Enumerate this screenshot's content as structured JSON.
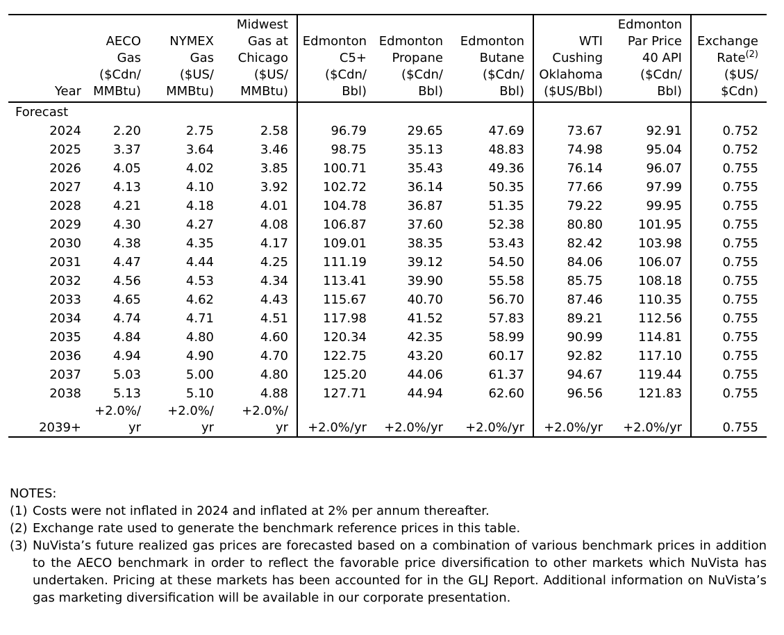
{
  "table": {
    "headers": [
      {
        "lines": [
          "Year"
        ]
      },
      {
        "lines": [
          "AECO",
          "Gas",
          "($Cdn/",
          "MMBtu)"
        ]
      },
      {
        "lines": [
          "NYMEX",
          "Gas",
          "($US/",
          "MMBtu)"
        ]
      },
      {
        "lines": [
          "Midwest",
          "Gas at",
          "Chicago",
          "($US/",
          "MMBtu)"
        ]
      },
      {
        "lines": [
          "Edmonton",
          "C5+",
          "($Cdn/",
          "Bbl)"
        ]
      },
      {
        "lines": [
          "Edmonton",
          "Propane",
          "($Cdn/",
          "Bbl)"
        ]
      },
      {
        "lines": [
          "Edmonton",
          "Butane",
          "($Cdn/",
          "Bbl)"
        ]
      },
      {
        "lines": [
          "WTI",
          "Cushing",
          "Oklahoma",
          "($US/Bbl)"
        ]
      },
      {
        "lines": [
          "Edmonton",
          "Par Price",
          "40 API",
          "($Cdn/",
          "Bbl)"
        ]
      },
      {
        "lines": [
          "Exchange",
          "Rate",
          "($US/",
          "$Cdn)"
        ],
        "superscript": "(2)",
        "superscript_line": 1
      }
    ],
    "section_label": "Forecast",
    "rows": [
      {
        "label": "2024",
        "cells": [
          "2.20",
          "2.75",
          "2.58",
          "96.79",
          "29.65",
          "47.69",
          "73.67",
          "92.91",
          "0.752"
        ]
      },
      {
        "label": "2025",
        "cells": [
          "3.37",
          "3.64",
          "3.46",
          "98.75",
          "35.13",
          "48.83",
          "74.98",
          "95.04",
          "0.752"
        ]
      },
      {
        "label": "2026",
        "cells": [
          "4.05",
          "4.02",
          "3.85",
          "100.71",
          "35.43",
          "49.36",
          "76.14",
          "96.07",
          "0.755"
        ]
      },
      {
        "label": "2027",
        "cells": [
          "4.13",
          "4.10",
          "3.92",
          "102.72",
          "36.14",
          "50.35",
          "77.66",
          "97.99",
          "0.755"
        ]
      },
      {
        "label": "2028",
        "cells": [
          "4.21",
          "4.18",
          "4.01",
          "104.78",
          "36.87",
          "51.35",
          "79.22",
          "99.95",
          "0.755"
        ]
      },
      {
        "label": "2029",
        "cells": [
          "4.30",
          "4.27",
          "4.08",
          "106.87",
          "37.60",
          "52.38",
          "80.80",
          "101.95",
          "0.755"
        ]
      },
      {
        "label": "2030",
        "cells": [
          "4.38",
          "4.35",
          "4.17",
          "109.01",
          "38.35",
          "53.43",
          "82.42",
          "103.98",
          "0.755"
        ]
      },
      {
        "label": "2031",
        "cells": [
          "4.47",
          "4.44",
          "4.25",
          "111.19",
          "39.12",
          "54.50",
          "84.06",
          "106.07",
          "0.755"
        ]
      },
      {
        "label": "2032",
        "cells": [
          "4.56",
          "4.53",
          "4.34",
          "113.41",
          "39.90",
          "55.58",
          "85.75",
          "108.18",
          "0.755"
        ]
      },
      {
        "label": "2033",
        "cells": [
          "4.65",
          "4.62",
          "4.43",
          "115.67",
          "40.70",
          "56.70",
          "87.46",
          "110.35",
          "0.755"
        ]
      },
      {
        "label": "2034",
        "cells": [
          "4.74",
          "4.71",
          "4.51",
          "117.98",
          "41.52",
          "57.83",
          "89.21",
          "112.56",
          "0.755"
        ]
      },
      {
        "label": "2035",
        "cells": [
          "4.84",
          "4.80",
          "4.60",
          "120.34",
          "42.35",
          "58.99",
          "90.99",
          "114.81",
          "0.755"
        ]
      },
      {
        "label": "2036",
        "cells": [
          "4.94",
          "4.90",
          "4.70",
          "122.75",
          "43.20",
          "60.17",
          "92.82",
          "117.10",
          "0.755"
        ]
      },
      {
        "label": "2037",
        "cells": [
          "5.03",
          "5.00",
          "4.80",
          "125.20",
          "44.06",
          "61.37",
          "94.67",
          "119.44",
          "0.755"
        ]
      },
      {
        "label": "2038",
        "cells": [
          "5.13",
          "5.10",
          "4.88",
          "127.71",
          "44.94",
          "62.60",
          "96.56",
          "121.83",
          "0.755"
        ]
      },
      {
        "label": "2039+",
        "cells": [
          [
            "+2.0%/",
            "yr"
          ],
          [
            "+2.0%/",
            "yr"
          ],
          [
            "+2.0%/",
            "yr"
          ],
          "+2.0%/yr",
          "+2.0%/yr",
          "+2.0%/yr",
          "+2.0%/yr",
          "+2.0%/yr",
          "0.755"
        ]
      }
    ]
  },
  "notes": {
    "title": "NOTES:",
    "items": [
      {
        "number": "(1)",
        "text": "Costs were not inflated in 2024 and inflated at 2% per annum thereafter."
      },
      {
        "number": "(2)",
        "text": "Exchange rate used to generate the benchmark reference prices in this table."
      },
      {
        "number": "(3)",
        "text": "NuVista’s future realized gas prices are forecasted based on a combination of various benchmark prices in addition to the AECO benchmark in order to reflect the favorable price diversification to other markets which NuVista has undertaken. Pricing at these markets has been accounted for in the GLJ Report. Additional information on NuVista’s gas marketing diversification will be available in our corporate presentation."
      }
    ]
  }
}
